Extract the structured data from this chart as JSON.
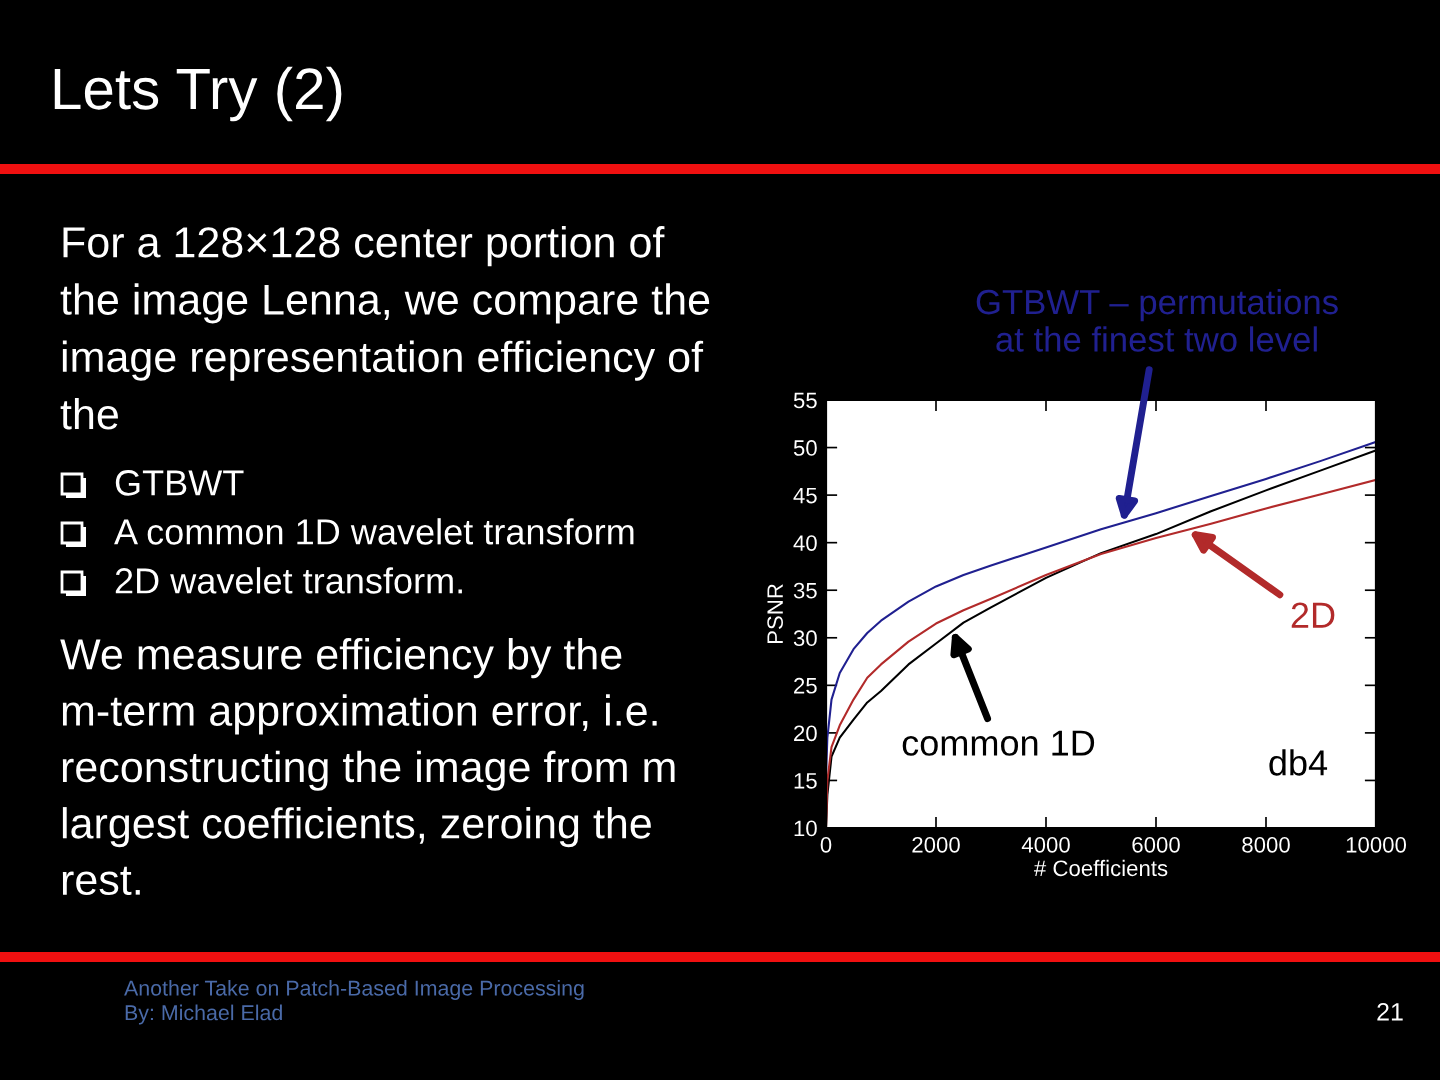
{
  "chart_data": {
    "type": "line",
    "title": "Lets Try (2)",
    "xlabel": "# Coefficients",
    "ylabel": "PSNR",
    "x": [
      0,
      25,
      100,
      250,
      500,
      750,
      1000,
      1500,
      2000,
      2500,
      3000,
      4000,
      5000,
      6000,
      7000,
      8000,
      9000,
      10000
    ],
    "series": [
      {
        "color": "#202090",
        "values": [
          15.5,
          19.5,
          23.5,
          26.3,
          28.8,
          30.5,
          31.8,
          33.8,
          35.4,
          36.6,
          37.6,
          39.5,
          41.4,
          43.1,
          44.9,
          46.7,
          48.6,
          50.6
        ]
      },
      {
        "color": "#000000",
        "values": [
          10,
          13.5,
          17.5,
          19.5,
          21.4,
          23.2,
          24.4,
          27.2,
          29.4,
          31.6,
          33.2,
          36.3,
          38.9,
          40.9,
          43.3,
          45.5,
          47.6,
          49.7
        ]
      },
      {
        "color": "#b22a2a",
        "values": [
          10,
          15,
          18.5,
          20.8,
          23.5,
          25.8,
          27.2,
          29.6,
          31.5,
          32.9,
          34.1,
          36.6,
          38.8,
          40.5,
          42.0,
          43.6,
          45.1,
          46.6
        ]
      }
    ],
    "xlim": [
      0,
      10000
    ],
    "ylim": [
      10,
      55
    ],
    "xticks": [
      0,
      2000,
      4000,
      6000,
      8000,
      10000
    ],
    "yticks": [
      10,
      15,
      20,
      25,
      30,
      35,
      40,
      45,
      50,
      55
    ],
    "annotations": [
      "For a 128×128 center portion of\nthe image Lenna, we compare the\nimage representation efficiency of\nthe",
      "GTBWT\nA common 1D wavelet transform\n2D wavelet transform.",
      "We measure efficiency by the\nm-term approximation error, i.e.\nreconstructing the image from m\nlargest coefficients, zeroing the\nrest.",
      {
        "text": "GTBWT – permutations\nat the finest two level",
        "x": 5400,
        "y": 42.1
      },
      {
        "text": "2D",
        "x": 6600,
        "y": 41.3
      },
      {
        "text": "common 1D",
        "x": 2300,
        "y": 30.8
      },
      "db4",
      "Another Take on Patch-Based Image Processing\nBy: Michael Elad",
      "21"
    ]
  }
}
